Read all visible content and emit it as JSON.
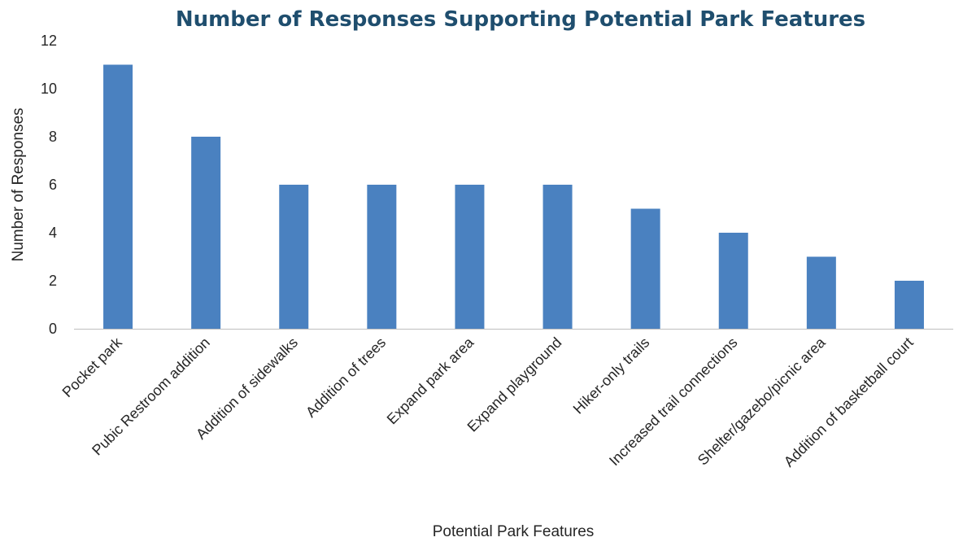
{
  "chart_data": {
    "type": "bar",
    "title": "Number of Responses Supporting Potential Park Features",
    "xlabel": "Potential Park Features",
    "ylabel": "Number of Responses",
    "categories": [
      "Pocket park",
      "Pubic Restroom addition",
      "Addition of sidewalks",
      "Addition of trees",
      "Expand park area",
      "Expand playground",
      "Hiker-only trails",
      "Increased trail connections",
      "Shelter/gazebo/picnic area",
      "Addition of basketball court"
    ],
    "values": [
      11,
      8,
      6,
      6,
      6,
      6,
      5,
      4,
      3,
      2
    ],
    "ylim": [
      0,
      12
    ],
    "yticks": [
      0,
      2,
      4,
      6,
      8,
      10,
      12
    ],
    "grid": false,
    "legend": "none",
    "colors": {
      "bar": "#4a81c0",
      "title": "#1f4e6e"
    }
  }
}
